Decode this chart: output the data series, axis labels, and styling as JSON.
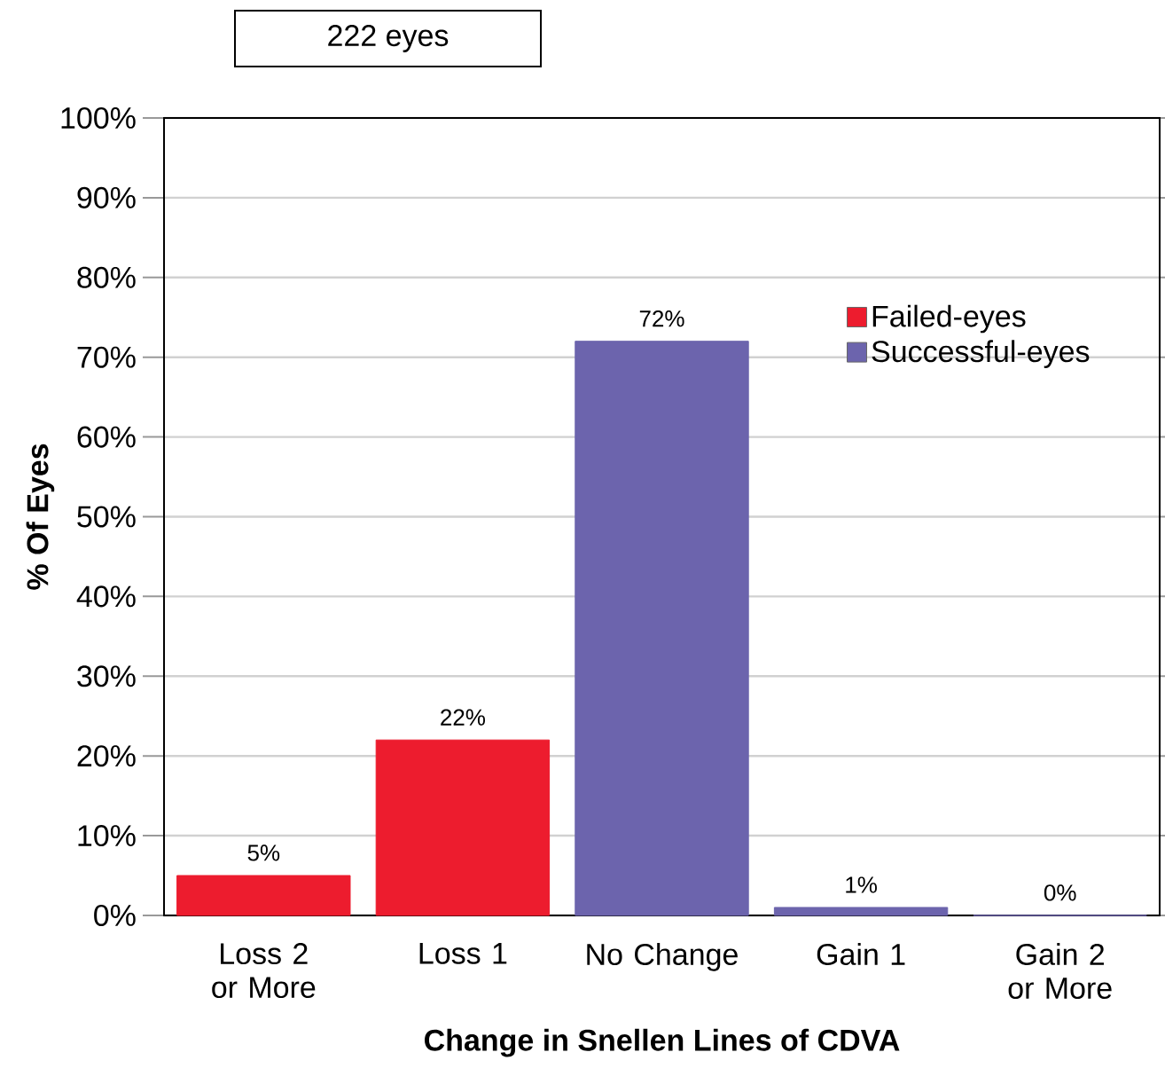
{
  "chart_data": {
    "type": "bar",
    "categories": [
      "Loss 2 or More",
      "Loss 1",
      "No Change",
      "Gain 1",
      "Gain 2 or More"
    ],
    "series": [
      {
        "name": "Failed-eyes",
        "color": "#ed1c2e",
        "values": [
          5,
          22,
          null,
          null,
          null
        ],
        "value_labels": [
          "5%",
          "22%",
          null,
          null,
          null
        ]
      },
      {
        "name": "Successful-eyes",
        "color": "#6c64ad",
        "values": [
          null,
          null,
          72,
          1,
          0
        ],
        "value_labels": [
          null,
          null,
          "72%",
          "1%",
          "0%"
        ]
      }
    ],
    "xlabel": "Change in Snellen Lines of CDVA",
    "ylabel": "% Of Eyes",
    "ylim": [
      0,
      100
    ],
    "yticks": [
      {
        "value": 0,
        "label": "0%"
      },
      {
        "value": 10,
        "label": "10%"
      },
      {
        "value": 20,
        "label": "20%"
      },
      {
        "value": 30,
        "label": "30%"
      },
      {
        "value": 40,
        "label": "40%"
      },
      {
        "value": 50,
        "label": "50%"
      },
      {
        "value": 60,
        "label": "60%"
      },
      {
        "value": 70,
        "label": "70%"
      },
      {
        "value": 80,
        "label": "80%"
      },
      {
        "value": 90,
        "label": "90%"
      },
      {
        "value": 100,
        "label": "100%"
      }
    ],
    "grid": "y",
    "legend": "top right",
    "annotations": [
      "222 eyes"
    ]
  }
}
